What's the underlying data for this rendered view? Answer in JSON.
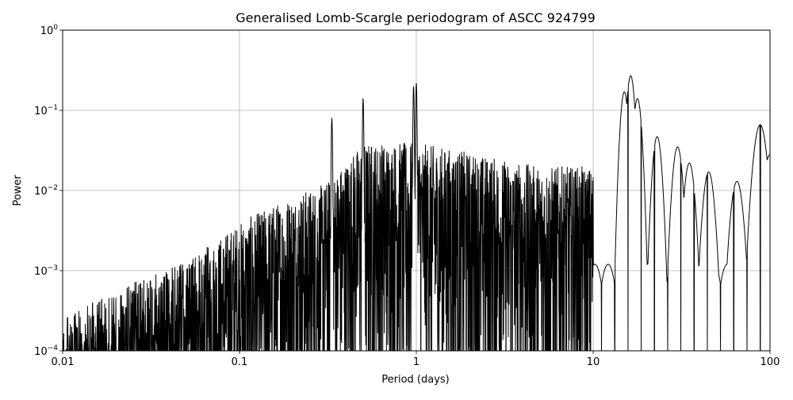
{
  "chart_data": {
    "type": "line",
    "title": "Generalised Lomb-Scargle periodogram of ASCC 924799",
    "xlabel": "Period (days)",
    "ylabel": "Power",
    "xscale": "log",
    "yscale": "log",
    "xlim": [
      0.01,
      100
    ],
    "ylim": [
      0.0001,
      1
    ],
    "grid": true,
    "line_color": "#000000",
    "x_ticks": [
      {
        "value": 0.01,
        "label": "0.01"
      },
      {
        "value": 0.1,
        "label": "0.1"
      },
      {
        "value": 1,
        "label": "1"
      },
      {
        "value": 10,
        "label": "10"
      },
      {
        "value": 100,
        "label": "100"
      }
    ],
    "y_ticks": [
      {
        "value": 0.0001,
        "base": "10",
        "exp": "−4"
      },
      {
        "value": 0.001,
        "base": "10",
        "exp": "−3"
      },
      {
        "value": 0.01,
        "base": "10",
        "exp": "−2"
      },
      {
        "value": 0.1,
        "base": "10",
        "exp": "−1"
      },
      {
        "value": 1,
        "base": "10",
        "exp": "0"
      }
    ],
    "peaks": [
      {
        "period": 0.5,
        "power": 0.14
      },
      {
        "period": 0.965,
        "power": 0.2
      },
      {
        "period": 1.0,
        "power": 0.22
      },
      {
        "period": 0.333,
        "power": 0.08
      },
      {
        "period": 15.0,
        "power": 0.17
      },
      {
        "period": 16.3,
        "power": 0.27
      },
      {
        "period": 17.8,
        "power": 0.14
      },
      {
        "period": 23.0,
        "power": 0.047
      },
      {
        "period": 30.0,
        "power": 0.035
      },
      {
        "period": 35.0,
        "power": 0.022
      },
      {
        "period": 45.0,
        "power": 0.017
      },
      {
        "period": 65.0,
        "power": 0.013
      },
      {
        "period": 88.0,
        "power": 0.066
      },
      {
        "period": 100.0,
        "power": 0.028
      }
    ],
    "envelope": {
      "period": [
        0.01,
        0.02,
        0.05,
        0.1,
        0.2,
        0.3,
        0.5,
        1.0,
        2.0,
        5.0,
        10.0
      ],
      "power": [
        0.00025,
        0.0006,
        0.0013,
        0.004,
        0.009,
        0.012,
        0.04,
        0.04,
        0.03,
        0.02,
        0.02
      ]
    }
  }
}
